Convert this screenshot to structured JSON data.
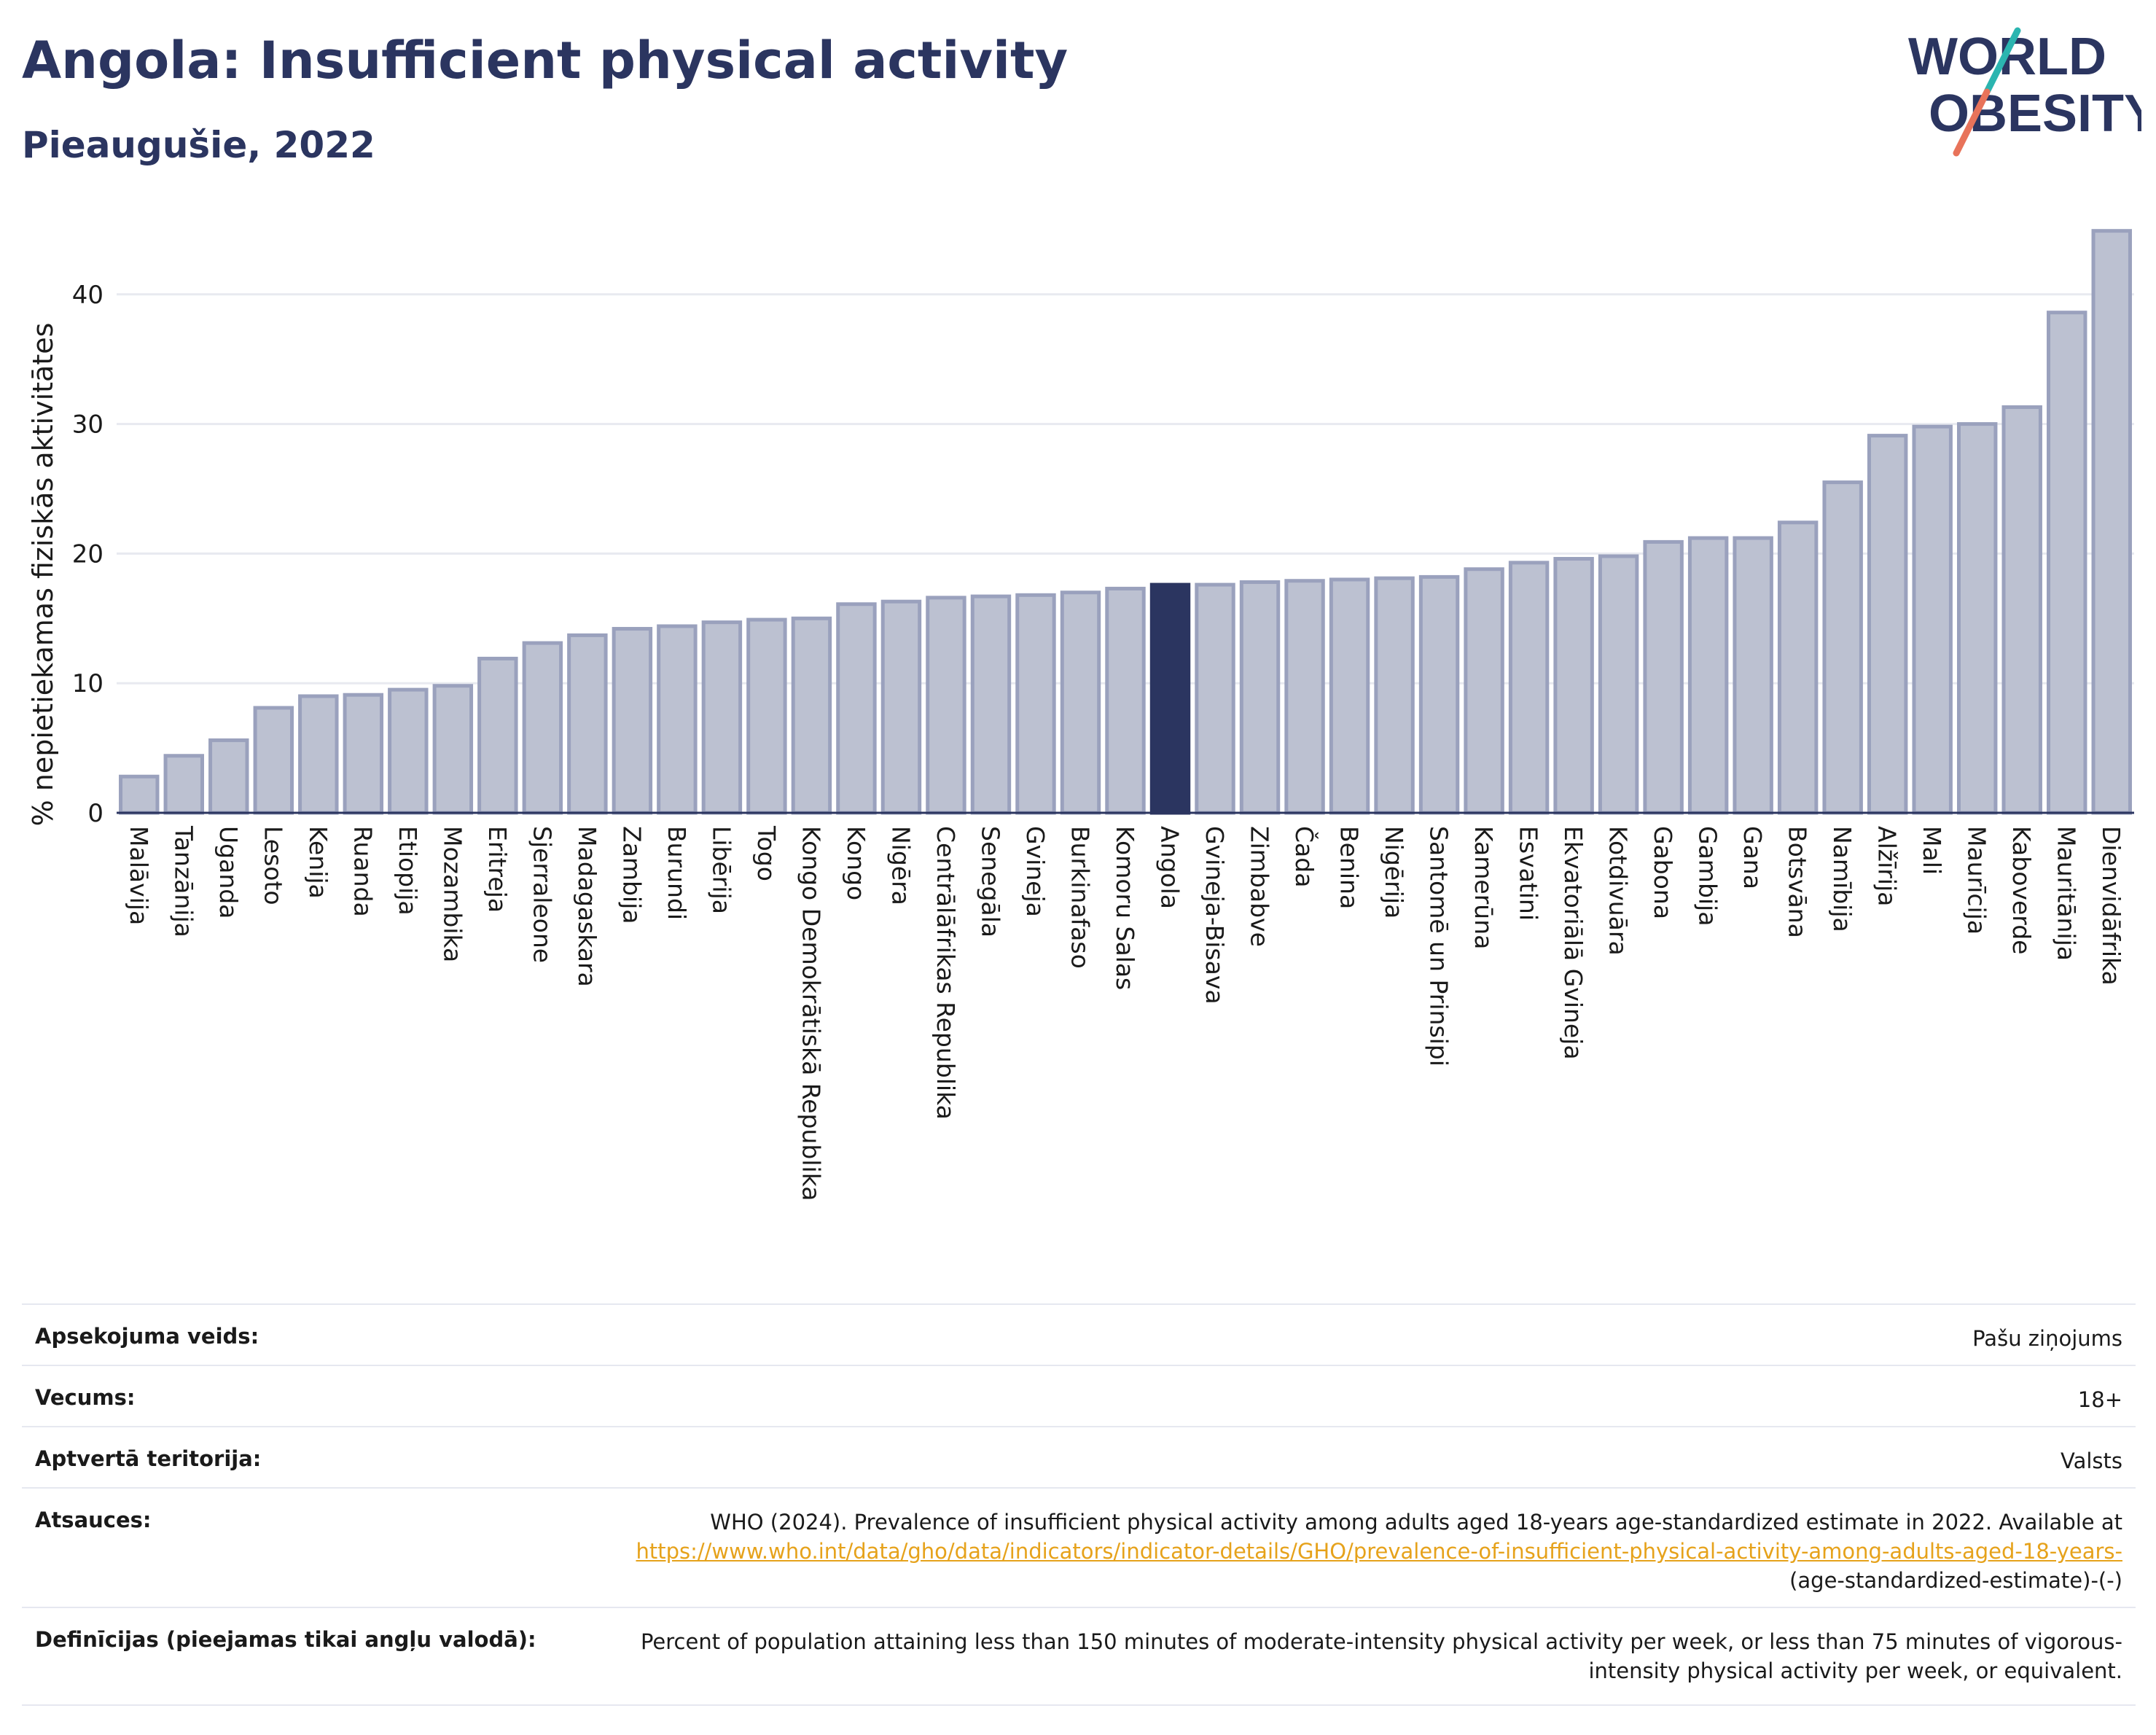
{
  "title": "Angola: Insufficient physical activity",
  "subtitle": "Pieaugušie, 2022",
  "logo": {
    "line1": "WORLD",
    "line2": "OBESITY"
  },
  "colors": {
    "highlight": "#2b3560",
    "bar": "#bcc1d1",
    "bar_border": "#9aa1bd",
    "accent_teal": "#2bb5b0",
    "accent_coral": "#e8735a",
    "link": "#e6a21b"
  },
  "chart_data": {
    "type": "bar",
    "ylabel": "% nepietiekamas fiziskās aktivitātes",
    "ylim": [
      0,
      45
    ],
    "yticks": [
      0,
      10,
      20,
      30,
      40
    ],
    "grid": true,
    "highlight": "Angola",
    "categories": [
      "Malāvija",
      "Tanzānija",
      "Uganda",
      "Lesoto",
      "Kenija",
      "Ruanda",
      "Etiopija",
      "Mozambika",
      "Eritreja",
      "Sjerraleone",
      "Madagaskara",
      "Zambija",
      "Burundi",
      "Libērija",
      "Togo",
      "Kongo Demokrātiskā Republika",
      "Kongo",
      "Nigēra",
      "Centrālāfrikas Republika",
      "Senegāla",
      "Gvineja",
      "Burkinafaso",
      "Komoru Salas",
      "Angola",
      "Gvineja-Bisava",
      "Zimbabve",
      "Čada",
      "Benina",
      "Nigērija",
      "Santomē un Prinsipi",
      "Kamerūna",
      "Esvatini",
      "Ekvatoriālā Gvineja",
      "Kotdivuāra",
      "Gabona",
      "Gambija",
      "Gana",
      "Botsvāna",
      "Namībija",
      "Alžīrija",
      "Mali",
      "Maurīcija",
      "Kaboverde",
      "Mauritānija",
      "Dienvidāfrika"
    ],
    "values": [
      2.8,
      4.4,
      5.6,
      8.1,
      9.0,
      9.1,
      9.5,
      9.8,
      11.9,
      13.1,
      13.7,
      14.2,
      14.4,
      14.7,
      14.9,
      15.0,
      16.1,
      16.3,
      16.6,
      16.7,
      16.8,
      17.0,
      17.3,
      17.6,
      17.6,
      17.8,
      17.9,
      18.0,
      18.1,
      18.2,
      18.8,
      19.3,
      19.6,
      19.8,
      20.9,
      21.2,
      21.2,
      22.4,
      25.5,
      29.1,
      29.8,
      30.0,
      31.3,
      38.6,
      44.9
    ]
  },
  "meta": {
    "survey_type_label": "Apsekojuma veids:",
    "survey_type_value": "Pašu ziņojums",
    "age_label": "Vecums:",
    "age_value": "18+",
    "coverage_label": "Aptvertā teritorija:",
    "coverage_value": "Valsts",
    "references_label": "Atsauces:",
    "references_text": "WHO (2024). Prevalence of insufficient physical activity among adults aged 18-years age-standardized estimate in 2022. Available at",
    "references_link": "https://www.who.int/data/gho/data/indicators/indicator-details/GHO/prevalence-of-insufficient-physical-activity-among-adults-aged-18-years-",
    "references_tail": "(age-standardized-estimate)-(-)",
    "definitions_label": "Definīcijas (pieejamas tikai angļu valodā):",
    "definitions_value": "Percent of population attaining less than 150 minutes of moderate-intensity physical activity per week, or less than 75 minutes of vigorous-intensity physical activity per week, or equivalent."
  }
}
